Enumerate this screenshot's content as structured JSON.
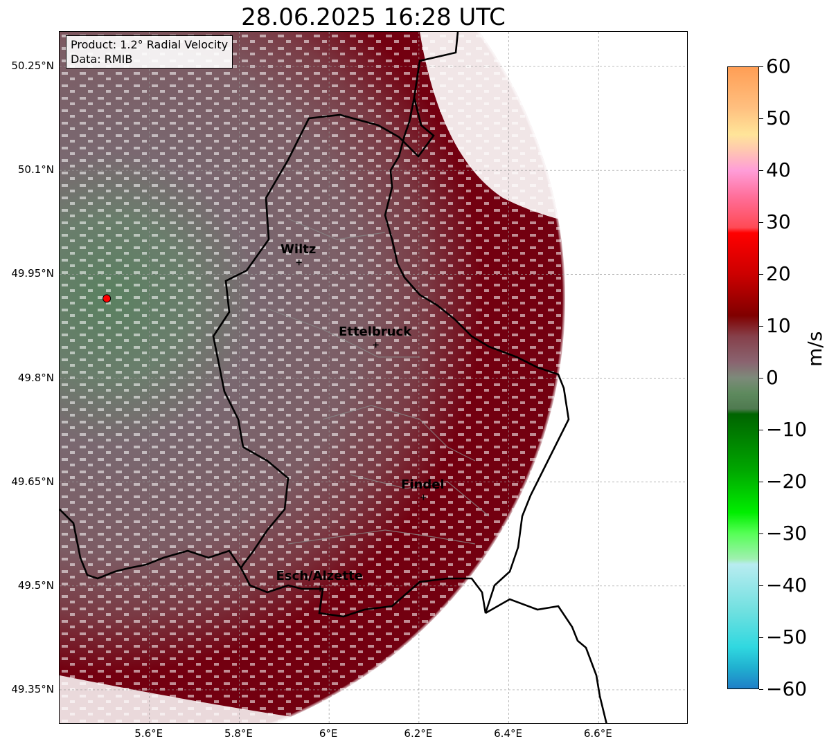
{
  "title": "28.06.2025 16:28 UTC",
  "info": {
    "product": "Product: 1.2° Radial Velocity",
    "data_source": "Data: RMIB"
  },
  "map": {
    "lon_range": [
      5.4,
      6.8
    ],
    "lat_range": [
      49.3,
      50.3
    ],
    "radar_site": {
      "lon": 5.505,
      "lat": 49.915,
      "color": "#ff0000"
    },
    "lat_ticks": [
      {
        "value": 50.25,
        "label": "50.25°N"
      },
      {
        "value": 50.1,
        "label": "50.1°N"
      },
      {
        "value": 49.95,
        "label": "49.95°N"
      },
      {
        "value": 49.8,
        "label": "49.8°N"
      },
      {
        "value": 49.65,
        "label": "49.65°N"
      },
      {
        "value": 49.5,
        "label": "49.5°N"
      },
      {
        "value": 49.35,
        "label": "49.35°N"
      }
    ],
    "lon_ticks": [
      {
        "value": 5.6,
        "label": "5.6°E"
      },
      {
        "value": 5.8,
        "label": "5.8°E"
      },
      {
        "value": 6.0,
        "label": "6°E"
      },
      {
        "value": 6.2,
        "label": "6.2°E"
      },
      {
        "value": 6.4,
        "label": "6.4°E"
      },
      {
        "value": 6.6,
        "label": "6.6°E"
      }
    ],
    "cities": [
      {
        "name": "Wiltz",
        "lon": 5.933,
        "lat": 49.967
      },
      {
        "name": "Ettelbruck",
        "lon": 6.104,
        "lat": 49.848
      },
      {
        "name": "Findel",
        "lon": 6.21,
        "lat": 49.628
      },
      {
        "name": "Esch/Alzette",
        "lon": 5.98,
        "lat": 49.496
      }
    ]
  },
  "colorbar": {
    "label": "m/s",
    "min": -60,
    "max": 60,
    "ticks": [
      {
        "value": 60,
        "label": "60"
      },
      {
        "value": 50,
        "label": "50"
      },
      {
        "value": 40,
        "label": "40"
      },
      {
        "value": 30,
        "label": "30"
      },
      {
        "value": 20,
        "label": "20"
      },
      {
        "value": 10,
        "label": "10"
      },
      {
        "value": 0,
        "label": "0"
      },
      {
        "value": -10,
        "label": "−10"
      },
      {
        "value": -20,
        "label": "−20"
      },
      {
        "value": -30,
        "label": "−30"
      },
      {
        "value": -40,
        "label": "−40"
      },
      {
        "value": -50,
        "label": "−50"
      },
      {
        "value": -60,
        "label": "−60"
      }
    ],
    "stops": [
      {
        "value": 60,
        "color": "#ff9e55"
      },
      {
        "value": 52,
        "color": "#ffc080"
      },
      {
        "value": 47,
        "color": "#ffe599"
      },
      {
        "value": 44,
        "color": "#ffc8b0"
      },
      {
        "value": 40,
        "color": "#ff9dd8"
      },
      {
        "value": 35,
        "color": "#ff6f9a"
      },
      {
        "value": 29,
        "color": "#ff4a55"
      },
      {
        "value": 28,
        "color": "#ff0000"
      },
      {
        "value": 20,
        "color": "#cc0000"
      },
      {
        "value": 12,
        "color": "#800000"
      },
      {
        "value": 8,
        "color": "#86404a"
      },
      {
        "value": 3,
        "color": "#8a6470"
      },
      {
        "value": 0,
        "color": "#7d8a7a"
      },
      {
        "value": -3,
        "color": "#5e8a5e"
      },
      {
        "value": -6,
        "color": "#4f7a50"
      },
      {
        "value": -7,
        "color": "#006400"
      },
      {
        "value": -18,
        "color": "#00a800"
      },
      {
        "value": -26,
        "color": "#00ee00"
      },
      {
        "value": -30,
        "color": "#55ff55"
      },
      {
        "value": -35,
        "color": "#a0f0b0"
      },
      {
        "value": -36,
        "color": "#b8ecf0"
      },
      {
        "value": -45,
        "color": "#70e0e0"
      },
      {
        "value": -52,
        "color": "#30d8e0"
      },
      {
        "value": -56,
        "color": "#20b0d0"
      },
      {
        "value": -60,
        "color": "#1f7fc8"
      }
    ]
  }
}
